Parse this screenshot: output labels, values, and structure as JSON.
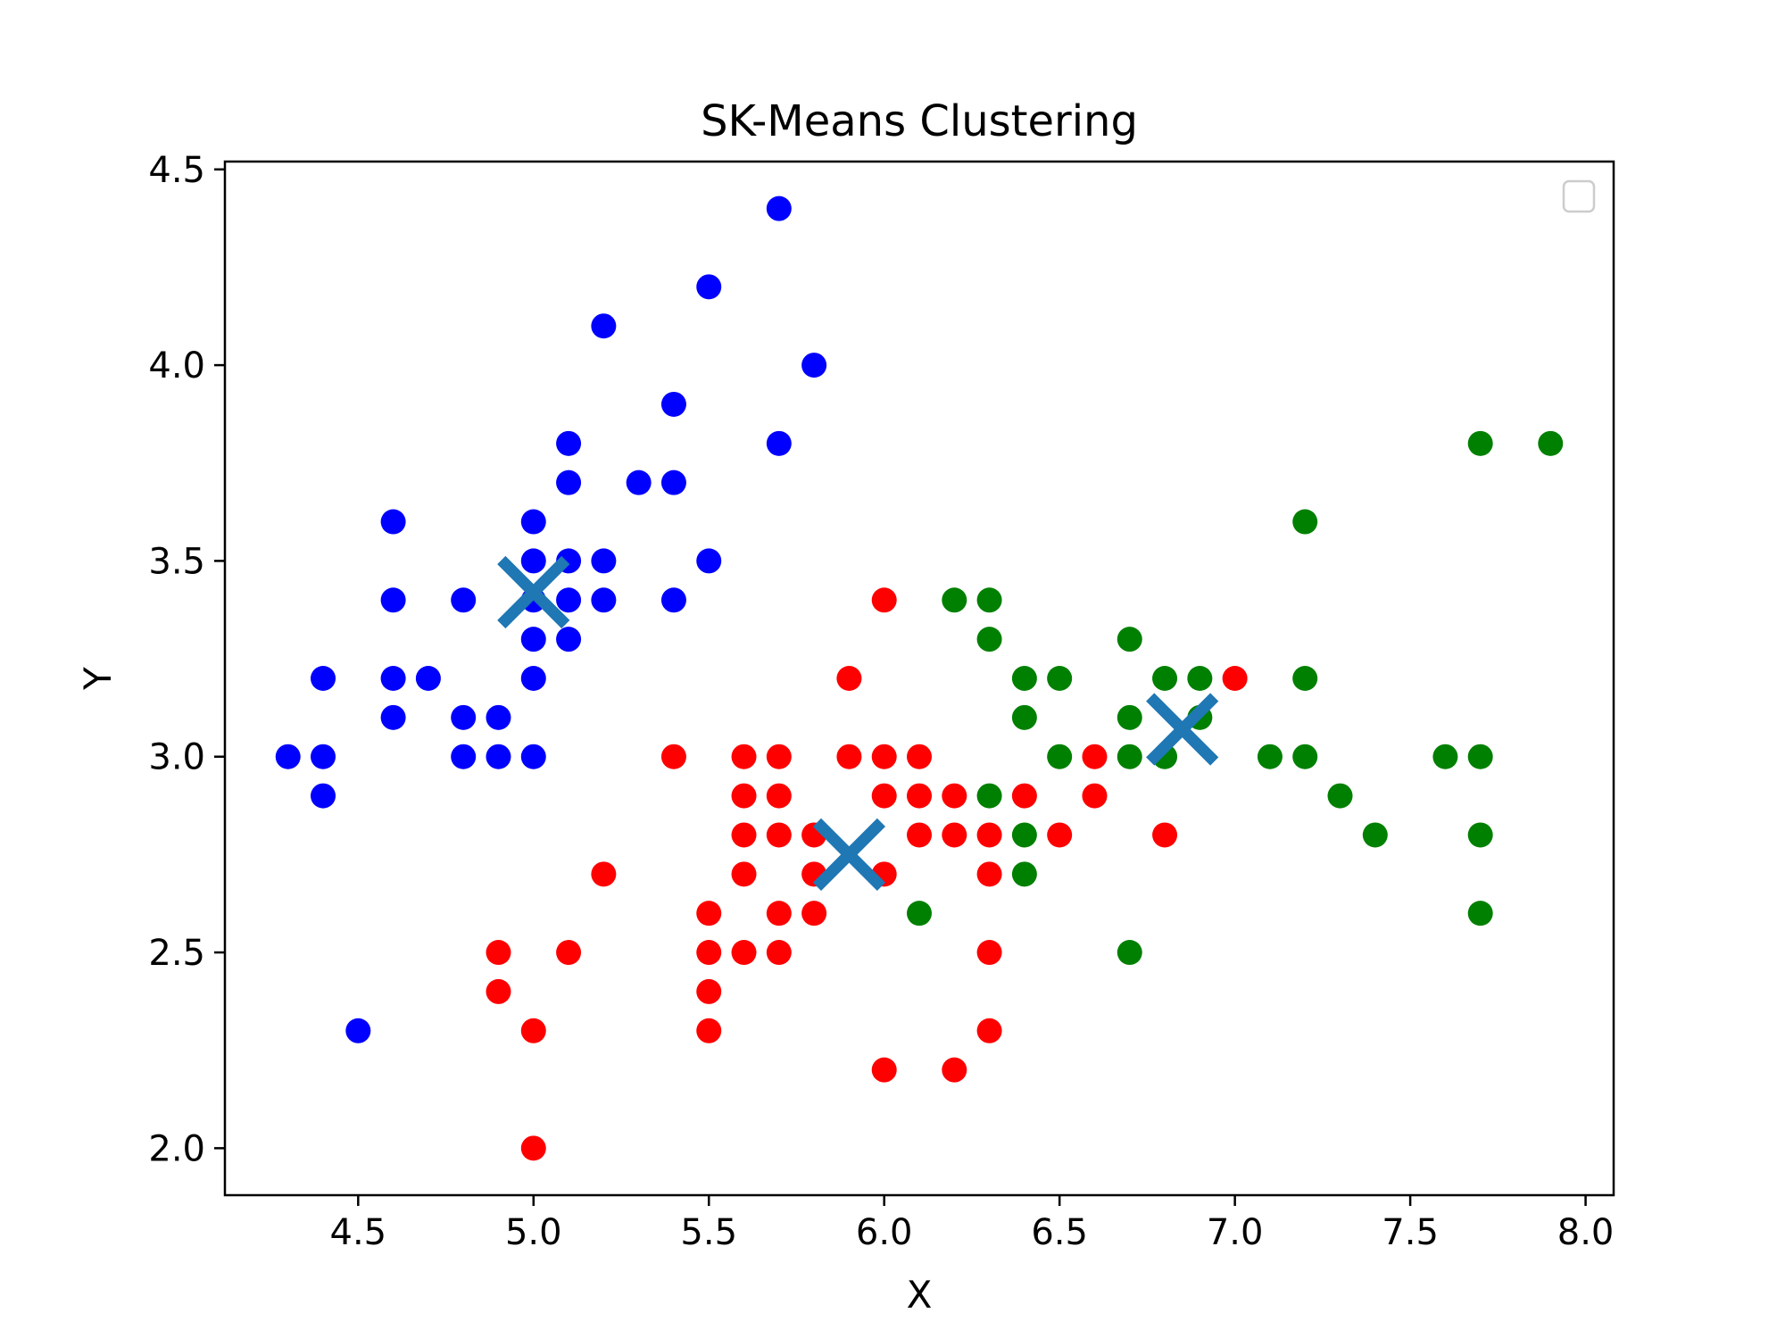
{
  "chart_data": {
    "type": "scatter",
    "title": "SK-Means Clustering",
    "xlabel": "X",
    "ylabel": "Y",
    "xlim": [
      4.12,
      8.08
    ],
    "ylim": [
      1.88,
      4.52
    ],
    "xticks": [
      "4.5",
      "5.0",
      "5.5",
      "6.0",
      "6.5",
      "7.0",
      "7.5",
      "8.0"
    ],
    "yticks": [
      "2.0",
      "2.5",
      "3.0",
      "3.5",
      "4.0",
      "4.5"
    ],
    "grid": false,
    "legend": {
      "placement": "top-right",
      "entries": []
    },
    "series": [
      {
        "color": "#0000ff",
        "points": [
          [
            4.3,
            3.0
          ],
          [
            4.4,
            2.9
          ],
          [
            4.4,
            3.0
          ],
          [
            4.4,
            3.2
          ],
          [
            4.5,
            2.3
          ],
          [
            4.6,
            3.1
          ],
          [
            4.6,
            3.2
          ],
          [
            4.6,
            3.4
          ],
          [
            4.6,
            3.6
          ],
          [
            4.7,
            3.2
          ],
          [
            4.8,
            3.0
          ],
          [
            4.8,
            3.1
          ],
          [
            4.8,
            3.4
          ],
          [
            4.9,
            3.0
          ],
          [
            4.9,
            3.1
          ],
          [
            5.0,
            3.0
          ],
          [
            5.0,
            3.2
          ],
          [
            5.0,
            3.3
          ],
          [
            5.0,
            3.4
          ],
          [
            5.0,
            3.5
          ],
          [
            5.0,
            3.6
          ],
          [
            5.1,
            3.3
          ],
          [
            5.1,
            3.4
          ],
          [
            5.1,
            3.5
          ],
          [
            5.1,
            3.7
          ],
          [
            5.1,
            3.8
          ],
          [
            5.2,
            3.4
          ],
          [
            5.2,
            3.5
          ],
          [
            5.2,
            4.1
          ],
          [
            5.3,
            3.7
          ],
          [
            5.4,
            3.4
          ],
          [
            5.4,
            3.7
          ],
          [
            5.4,
            3.9
          ],
          [
            5.5,
            3.5
          ],
          [
            5.5,
            4.2
          ],
          [
            5.7,
            3.8
          ],
          [
            5.7,
            4.4
          ],
          [
            5.8,
            4.0
          ]
        ]
      },
      {
        "color": "#ff0000",
        "points": [
          [
            4.9,
            2.4
          ],
          [
            4.9,
            2.5
          ],
          [
            5.0,
            2.0
          ],
          [
            5.0,
            2.3
          ],
          [
            5.1,
            2.5
          ],
          [
            5.2,
            2.7
          ],
          [
            5.4,
            3.0
          ],
          [
            5.5,
            2.3
          ],
          [
            5.5,
            2.4
          ],
          [
            5.5,
            2.5
          ],
          [
            5.5,
            2.6
          ],
          [
            5.6,
            2.5
          ],
          [
            5.6,
            2.7
          ],
          [
            5.6,
            2.8
          ],
          [
            5.6,
            2.9
          ],
          [
            5.6,
            3.0
          ],
          [
            5.7,
            2.5
          ],
          [
            5.7,
            2.6
          ],
          [
            5.7,
            2.8
          ],
          [
            5.7,
            2.9
          ],
          [
            5.7,
            3.0
          ],
          [
            5.8,
            2.6
          ],
          [
            5.8,
            2.7
          ],
          [
            5.8,
            2.8
          ],
          [
            5.9,
            3.0
          ],
          [
            5.9,
            3.2
          ],
          [
            6.0,
            2.2
          ],
          [
            6.0,
            2.7
          ],
          [
            6.0,
            2.9
          ],
          [
            6.0,
            3.0
          ],
          [
            6.0,
            3.4
          ],
          [
            6.1,
            2.8
          ],
          [
            6.1,
            2.9
          ],
          [
            6.1,
            3.0
          ],
          [
            6.2,
            2.2
          ],
          [
            6.2,
            2.8
          ],
          [
            6.2,
            2.9
          ],
          [
            6.3,
            2.3
          ],
          [
            6.3,
            2.5
          ],
          [
            6.3,
            2.7
          ],
          [
            6.3,
            2.8
          ],
          [
            6.4,
            2.9
          ],
          [
            6.5,
            2.8
          ],
          [
            6.6,
            2.9
          ],
          [
            6.6,
            3.0
          ],
          [
            6.8,
            2.8
          ],
          [
            7.0,
            3.2
          ]
        ]
      },
      {
        "color": "#008000",
        "points": [
          [
            6.1,
            2.6
          ],
          [
            6.2,
            3.4
          ],
          [
            6.3,
            2.9
          ],
          [
            6.3,
            3.3
          ],
          [
            6.3,
            3.4
          ],
          [
            6.4,
            2.7
          ],
          [
            6.4,
            2.8
          ],
          [
            6.4,
            3.1
          ],
          [
            6.4,
            3.2
          ],
          [
            6.5,
            3.0
          ],
          [
            6.5,
            3.2
          ],
          [
            6.7,
            2.5
          ],
          [
            6.7,
            3.0
          ],
          [
            6.7,
            3.1
          ],
          [
            6.7,
            3.3
          ],
          [
            6.8,
            3.0
          ],
          [
            6.8,
            3.2
          ],
          [
            6.9,
            3.1
          ],
          [
            6.9,
            3.2
          ],
          [
            7.1,
            3.0
          ],
          [
            7.2,
            3.0
          ],
          [
            7.2,
            3.2
          ],
          [
            7.2,
            3.6
          ],
          [
            7.3,
            2.9
          ],
          [
            7.4,
            2.8
          ],
          [
            7.6,
            3.0
          ],
          [
            7.7,
            2.6
          ],
          [
            7.7,
            2.8
          ],
          [
            7.7,
            3.0
          ],
          [
            7.7,
            3.8
          ],
          [
            7.9,
            3.8
          ]
        ]
      }
    ],
    "centroids": {
      "color": "#1f77b4",
      "marker": "x",
      "points": [
        [
          5.0,
          3.42
        ],
        [
          5.9,
          2.75
        ],
        [
          6.85,
          3.07
        ]
      ]
    }
  }
}
